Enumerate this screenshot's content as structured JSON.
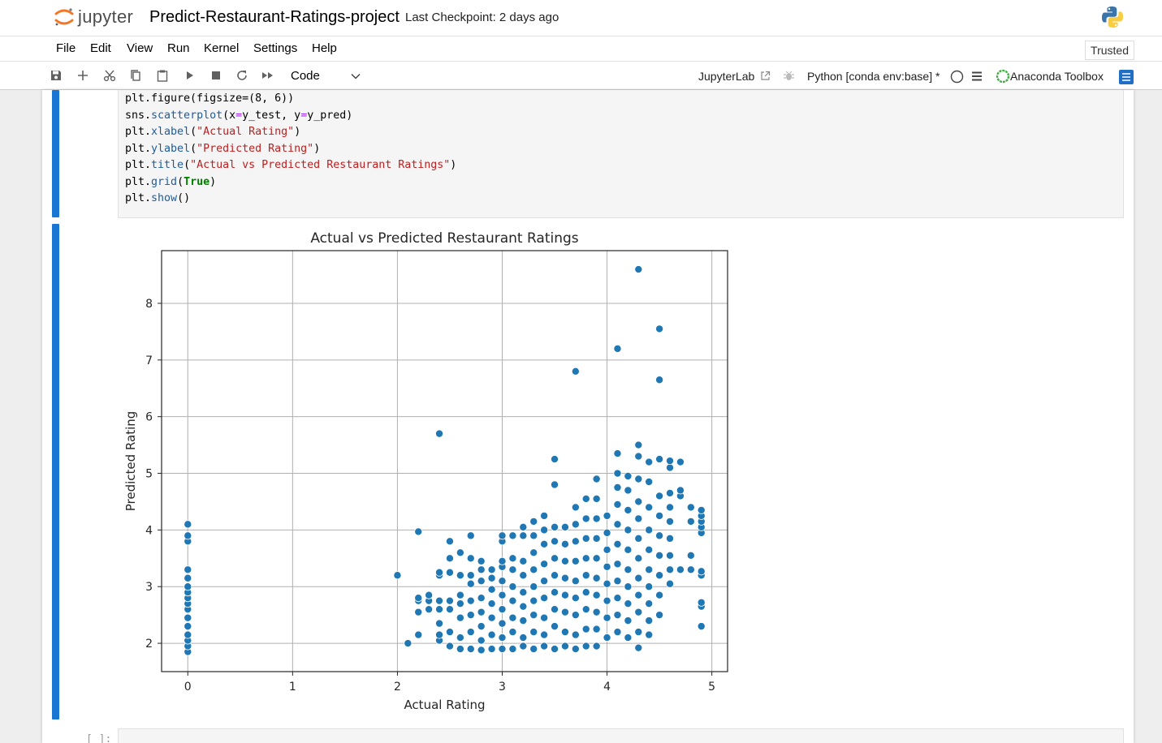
{
  "header": {
    "logo_text": "jupyter",
    "notebook_title": "Predict-Restaurant-Ratings-project",
    "checkpoint": "Last Checkpoint: 2 days ago"
  },
  "menubar": {
    "items": [
      "File",
      "Edit",
      "View",
      "Run",
      "Kernel",
      "Settings",
      "Help"
    ],
    "trusted": "Trusted"
  },
  "toolbar": {
    "cell_type": "Code",
    "jupyterlab_link": "JupyterLab",
    "kernel": "Python [conda env:base] *",
    "anaconda": "Anaconda Toolbox"
  },
  "code_cell": {
    "lines": [
      "plt.figure(figsize=(8, 6))",
      "sns.scatterplot(x=y_test, y=y_pred)",
      "plt.xlabel(\"Actual Rating\")",
      "plt.ylabel(\"Predicted Rating\")",
      "plt.title(\"Actual vs Predicted Restaurant Ratings\")",
      "plt.grid(True)",
      "plt.show()"
    ]
  },
  "next_cell": {
    "prompt": "[ ]:"
  },
  "chart_data": {
    "type": "scatter",
    "title": "Actual vs Predicted Restaurant Ratings",
    "xlabel": "Actual Rating",
    "ylabel": "Predicted Rating",
    "xlim": [
      -0.25,
      5.15
    ],
    "ylim": [
      1.5,
      8.93
    ],
    "xticks": [
      0,
      1,
      2,
      3,
      4,
      5
    ],
    "yticks": [
      2,
      3,
      4,
      5,
      6,
      7,
      8
    ],
    "grid": true,
    "color": "#1f77b4",
    "series": [
      {
        "points": [
          [
            0,
            1.85
          ],
          [
            0,
            1.95
          ],
          [
            0,
            2.05
          ],
          [
            0,
            2.15
          ],
          [
            0,
            2.3
          ],
          [
            0,
            2.45
          ],
          [
            0,
            2.6
          ],
          [
            0,
            2.7
          ],
          [
            0,
            2.8
          ],
          [
            0,
            2.9
          ],
          [
            0,
            3.0
          ],
          [
            0,
            3.15
          ],
          [
            0,
            3.3
          ],
          [
            0,
            3.8
          ],
          [
            0,
            3.9
          ],
          [
            0,
            4.1
          ],
          [
            2.0,
            3.2
          ],
          [
            2.1,
            2.0
          ],
          [
            2.2,
            2.15
          ],
          [
            2.2,
            2.55
          ],
          [
            2.2,
            2.75
          ],
          [
            2.2,
            2.8
          ],
          [
            2.2,
            3.97
          ],
          [
            2.3,
            2.6
          ],
          [
            2.3,
            2.75
          ],
          [
            2.3,
            2.85
          ],
          [
            2.4,
            2.05
          ],
          [
            2.4,
            2.15
          ],
          [
            2.4,
            2.35
          ],
          [
            2.4,
            2.6
          ],
          [
            2.4,
            2.75
          ],
          [
            2.4,
            3.2
          ],
          [
            2.4,
            3.25
          ],
          [
            2.4,
            5.7
          ],
          [
            2.5,
            1.95
          ],
          [
            2.5,
            2.2
          ],
          [
            2.5,
            2.6
          ],
          [
            2.5,
            2.75
          ],
          [
            2.5,
            3.25
          ],
          [
            2.5,
            3.5
          ],
          [
            2.5,
            3.8
          ],
          [
            2.6,
            1.9
          ],
          [
            2.6,
            2.1
          ],
          [
            2.6,
            2.45
          ],
          [
            2.6,
            2.7
          ],
          [
            2.6,
            2.85
          ],
          [
            2.6,
            3.2
          ],
          [
            2.6,
            3.6
          ],
          [
            2.7,
            1.9
          ],
          [
            2.7,
            2.2
          ],
          [
            2.7,
            2.5
          ],
          [
            2.7,
            2.75
          ],
          [
            2.7,
            3.05
          ],
          [
            2.7,
            3.2
          ],
          [
            2.7,
            3.5
          ],
          [
            2.7,
            3.9
          ],
          [
            2.8,
            1.88
          ],
          [
            2.8,
            2.05
          ],
          [
            2.8,
            2.3
          ],
          [
            2.8,
            2.55
          ],
          [
            2.8,
            2.8
          ],
          [
            2.8,
            3.1
          ],
          [
            2.8,
            3.3
          ],
          [
            2.8,
            3.45
          ],
          [
            2.9,
            1.9
          ],
          [
            2.9,
            2.15
          ],
          [
            2.9,
            2.45
          ],
          [
            2.9,
            2.7
          ],
          [
            2.9,
            2.95
          ],
          [
            2.9,
            3.15
          ],
          [
            2.9,
            3.3
          ],
          [
            3.0,
            1.9
          ],
          [
            3.0,
            2.1
          ],
          [
            3.0,
            2.35
          ],
          [
            3.0,
            2.6
          ],
          [
            3.0,
            2.85
          ],
          [
            3.0,
            3.1
          ],
          [
            3.0,
            3.35
          ],
          [
            3.0,
            3.45
          ],
          [
            3.0,
            3.8
          ],
          [
            3.0,
            3.9
          ],
          [
            3.1,
            1.9
          ],
          [
            3.1,
            2.2
          ],
          [
            3.1,
            2.45
          ],
          [
            3.1,
            2.75
          ],
          [
            3.1,
            3.0
          ],
          [
            3.1,
            3.3
          ],
          [
            3.1,
            3.5
          ],
          [
            3.1,
            3.9
          ],
          [
            3.2,
            1.95
          ],
          [
            3.2,
            2.1
          ],
          [
            3.2,
            2.4
          ],
          [
            3.2,
            2.65
          ],
          [
            3.2,
            2.9
          ],
          [
            3.2,
            3.2
          ],
          [
            3.2,
            3.45
          ],
          [
            3.2,
            3.9
          ],
          [
            3.2,
            4.05
          ],
          [
            3.3,
            1.9
          ],
          [
            3.3,
            2.2
          ],
          [
            3.3,
            2.5
          ],
          [
            3.3,
            2.75
          ],
          [
            3.3,
            3.0
          ],
          [
            3.3,
            3.3
          ],
          [
            3.3,
            3.6
          ],
          [
            3.3,
            3.9
          ],
          [
            3.3,
            4.15
          ],
          [
            3.4,
            1.95
          ],
          [
            3.4,
            2.15
          ],
          [
            3.4,
            2.45
          ],
          [
            3.4,
            2.8
          ],
          [
            3.4,
            3.1
          ],
          [
            3.4,
            3.4
          ],
          [
            3.4,
            3.75
          ],
          [
            3.4,
            4.0
          ],
          [
            3.4,
            4.25
          ],
          [
            3.5,
            1.9
          ],
          [
            3.5,
            2.3
          ],
          [
            3.5,
            2.6
          ],
          [
            3.5,
            2.9
          ],
          [
            3.5,
            3.2
          ],
          [
            3.5,
            3.5
          ],
          [
            3.5,
            3.8
          ],
          [
            3.5,
            4.05
          ],
          [
            3.5,
            4.8
          ],
          [
            3.5,
            5.25
          ],
          [
            3.6,
            1.95
          ],
          [
            3.6,
            2.2
          ],
          [
            3.6,
            2.55
          ],
          [
            3.6,
            2.85
          ],
          [
            3.6,
            3.15
          ],
          [
            3.6,
            3.45
          ],
          [
            3.6,
            3.75
          ],
          [
            3.6,
            4.05
          ],
          [
            3.7,
            1.9
          ],
          [
            3.7,
            2.15
          ],
          [
            3.7,
            2.5
          ],
          [
            3.7,
            2.8
          ],
          [
            3.7,
            3.1
          ],
          [
            3.7,
            3.45
          ],
          [
            3.7,
            3.8
          ],
          [
            3.7,
            4.1
          ],
          [
            3.7,
            4.4
          ],
          [
            3.7,
            6.8
          ],
          [
            3.8,
            1.95
          ],
          [
            3.8,
            2.25
          ],
          [
            3.8,
            2.6
          ],
          [
            3.8,
            2.9
          ],
          [
            3.8,
            3.2
          ],
          [
            3.8,
            3.5
          ],
          [
            3.8,
            3.85
          ],
          [
            3.8,
            4.2
          ],
          [
            3.8,
            4.55
          ],
          [
            3.9,
            1.95
          ],
          [
            3.9,
            2.25
          ],
          [
            3.9,
            2.55
          ],
          [
            3.9,
            2.85
          ],
          [
            3.9,
            3.15
          ],
          [
            3.9,
            3.5
          ],
          [
            3.9,
            3.85
          ],
          [
            3.9,
            4.2
          ],
          [
            3.9,
            4.55
          ],
          [
            3.9,
            4.9
          ],
          [
            4.0,
            2.1
          ],
          [
            4.0,
            2.45
          ],
          [
            4.0,
            2.75
          ],
          [
            4.0,
            3.05
          ],
          [
            4.0,
            3.35
          ],
          [
            4.0,
            3.65
          ],
          [
            4.0,
            3.95
          ],
          [
            4.0,
            4.25
          ],
          [
            4.1,
            2.2
          ],
          [
            4.1,
            2.5
          ],
          [
            4.1,
            2.8
          ],
          [
            4.1,
            3.1
          ],
          [
            4.1,
            3.4
          ],
          [
            4.1,
            3.75
          ],
          [
            4.1,
            4.1
          ],
          [
            4.1,
            4.45
          ],
          [
            4.1,
            4.75
          ],
          [
            4.1,
            5.0
          ],
          [
            4.1,
            5.35
          ],
          [
            4.1,
            7.2
          ],
          [
            4.2,
            2.1
          ],
          [
            4.2,
            2.4
          ],
          [
            4.2,
            2.7
          ],
          [
            4.2,
            3.0
          ],
          [
            4.2,
            3.3
          ],
          [
            4.2,
            3.65
          ],
          [
            4.2,
            4.0
          ],
          [
            4.2,
            4.35
          ],
          [
            4.2,
            4.7
          ],
          [
            4.2,
            4.95
          ],
          [
            4.3,
            1.92
          ],
          [
            4.3,
            2.2
          ],
          [
            4.3,
            2.55
          ],
          [
            4.3,
            2.85
          ],
          [
            4.3,
            3.15
          ],
          [
            4.3,
            3.5
          ],
          [
            4.3,
            3.85
          ],
          [
            4.3,
            4.2
          ],
          [
            4.3,
            4.5
          ],
          [
            4.3,
            4.9
          ],
          [
            4.3,
            5.3
          ],
          [
            4.3,
            5.5
          ],
          [
            4.3,
            8.6
          ],
          [
            4.4,
            2.15
          ],
          [
            4.4,
            2.4
          ],
          [
            4.4,
            2.7
          ],
          [
            4.4,
            3.0
          ],
          [
            4.4,
            3.3
          ],
          [
            4.4,
            3.65
          ],
          [
            4.4,
            4.0
          ],
          [
            4.4,
            4.4
          ],
          [
            4.4,
            4.85
          ],
          [
            4.4,
            5.2
          ],
          [
            4.5,
            2.5
          ],
          [
            4.5,
            2.85
          ],
          [
            4.5,
            3.2
          ],
          [
            4.5,
            3.55
          ],
          [
            4.5,
            3.9
          ],
          [
            4.5,
            4.25
          ],
          [
            4.5,
            4.6
          ],
          [
            4.5,
            5.25
          ],
          [
            4.5,
            6.65
          ],
          [
            4.5,
            7.55
          ],
          [
            4.6,
            3.05
          ],
          [
            4.6,
            3.3
          ],
          [
            4.6,
            3.55
          ],
          [
            4.6,
            3.85
          ],
          [
            4.6,
            4.15
          ],
          [
            4.6,
            4.4
          ],
          [
            4.6,
            4.65
          ],
          [
            4.6,
            5.1
          ],
          [
            4.6,
            5.22
          ],
          [
            4.7,
            3.3
          ],
          [
            4.7,
            4.6
          ],
          [
            4.7,
            4.7
          ],
          [
            4.7,
            5.2
          ],
          [
            4.8,
            3.3
          ],
          [
            4.8,
            3.55
          ],
          [
            4.8,
            4.15
          ],
          [
            4.8,
            4.4
          ],
          [
            4.9,
            2.3
          ],
          [
            4.9,
            2.65
          ],
          [
            4.9,
            2.72
          ],
          [
            4.9,
            3.2
          ],
          [
            4.9,
            3.27
          ],
          [
            4.9,
            3.95
          ],
          [
            4.9,
            4.05
          ],
          [
            4.9,
            4.15
          ],
          [
            4.9,
            4.25
          ],
          [
            4.9,
            4.35
          ]
        ]
      }
    ]
  }
}
